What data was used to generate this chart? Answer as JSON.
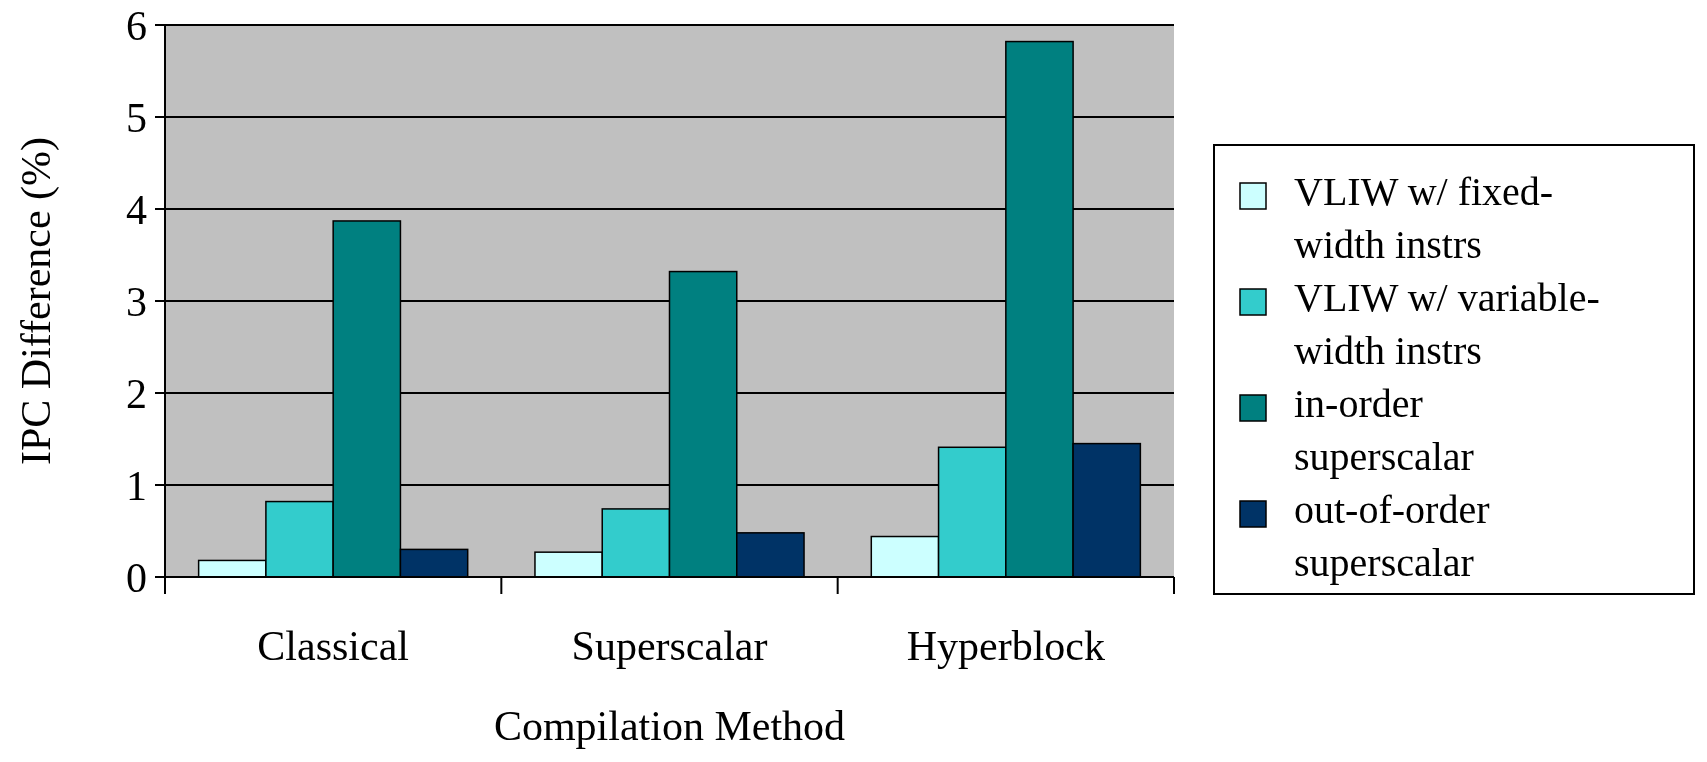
{
  "chart_data": {
    "type": "bar",
    "xlabel": "Compilation Method",
    "ylabel": "IPC Difference (%)",
    "categories": [
      "Classical",
      "Superscalar",
      "Hyperblock"
    ],
    "series": [
      {
        "name": "VLIW w/ fixed-width instrs",
        "color": "#ccffff",
        "values": [
          0.18,
          0.27,
          0.44
        ]
      },
      {
        "name": "VLIW w/ variable-width instrs",
        "color": "#33cccc",
        "values": [
          0.82,
          0.74,
          1.41
        ]
      },
      {
        "name": "in-order superscalar",
        "color": "#008080",
        "values": [
          3.87,
          3.32,
          5.82
        ]
      },
      {
        "name": "out-of-order superscalar",
        "color": "#003366",
        "values": [
          0.3,
          0.48,
          1.45
        ]
      }
    ],
    "ylim": [
      0,
      6
    ],
    "yticks": [
      0,
      1,
      2,
      3,
      4,
      5,
      6
    ],
    "grid": "y",
    "legend": "right"
  }
}
